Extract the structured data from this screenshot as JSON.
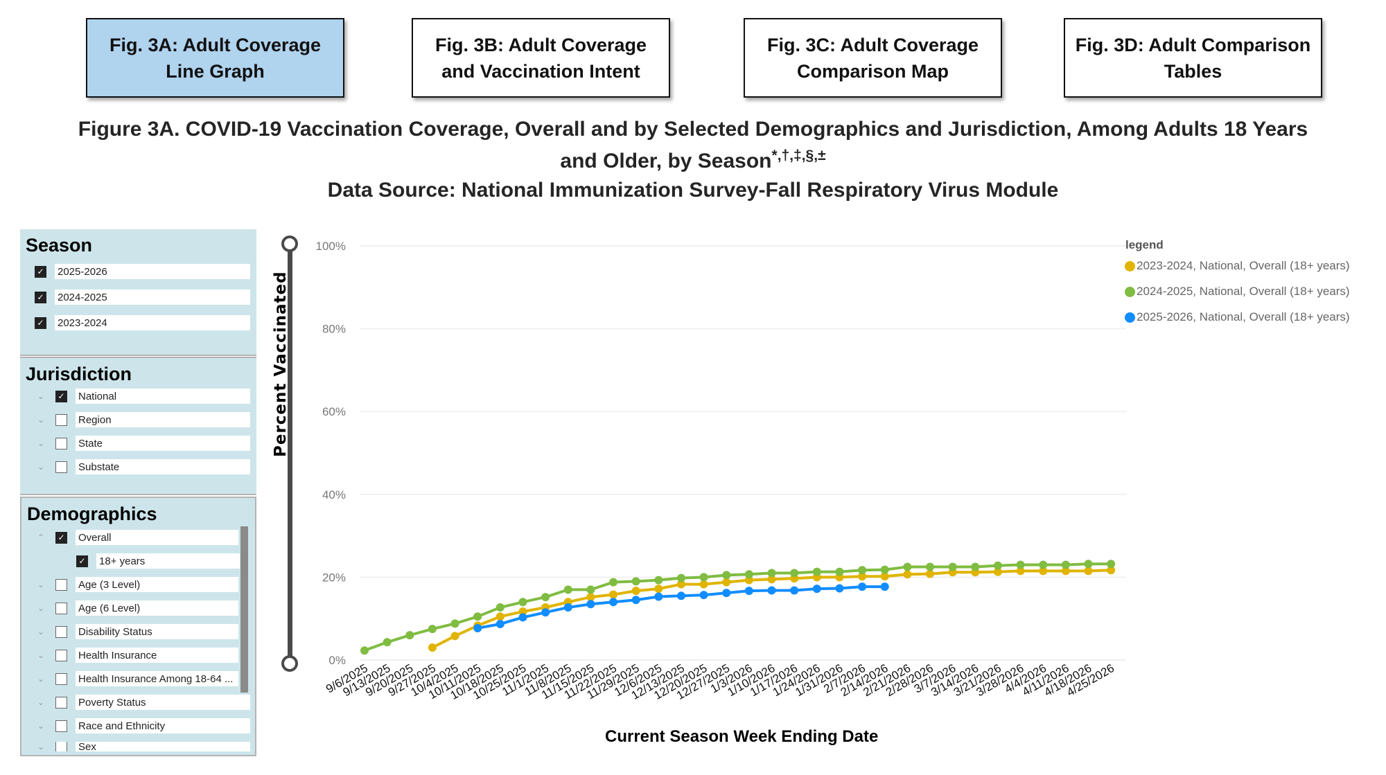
{
  "tabs": [
    {
      "label": "Fig. 3A: Adult Coverage\nLine Graph",
      "active": true
    },
    {
      "label": "Fig. 3B: Adult Coverage\nand Vaccination Intent",
      "active": false
    },
    {
      "label": "Fig. 3C: Adult Coverage\nComparison Map",
      "active": false
    },
    {
      "label": "Fig. 3D: Adult Comparison\nTables",
      "active": false
    }
  ],
  "title": {
    "line1": "Figure 3A. COVID-19 Vaccination Coverage, Overall and by Selected Demographics and Jurisdiction, Among Adults 18 Years",
    "line2": "and Older, by Season",
    "line2_sup": "*,†,‡,§,±",
    "source": "Data Source: National Immunization Survey-Fall Respiratory Virus Module"
  },
  "filters": {
    "season": {
      "heading": "Season",
      "items": [
        {
          "label": "2025-2026",
          "checked": true
        },
        {
          "label": "2024-2025",
          "checked": true
        },
        {
          "label": "2023-2024",
          "checked": true
        }
      ]
    },
    "jurisdiction": {
      "heading": "Jurisdiction",
      "items": [
        {
          "label": "National",
          "checked": true
        },
        {
          "label": "Region",
          "checked": false
        },
        {
          "label": "State",
          "checked": false
        },
        {
          "label": "Substate",
          "checked": false
        }
      ]
    },
    "demographics": {
      "heading": "Demographics",
      "items": [
        {
          "label": "Overall",
          "checked": true,
          "expanded": true
        },
        {
          "label": "18+ years",
          "checked": true,
          "child": true
        },
        {
          "label": "Age (3 Level)",
          "checked": false
        },
        {
          "label": "Age (6 Level)",
          "checked": false
        },
        {
          "label": "Disability Status",
          "checked": false
        },
        {
          "label": "Health Insurance",
          "checked": false
        },
        {
          "label": "Health Insurance Among 18-64 ...",
          "checked": false
        },
        {
          "label": "Poverty Status",
          "checked": false
        },
        {
          "label": "Race and Ethnicity",
          "checked": false
        },
        {
          "label": "Sex",
          "checked": false
        }
      ]
    }
  },
  "icons": {
    "check": "✓",
    "chevron_down": "⌄",
    "chevron_up": "⌃"
  },
  "chart_data": {
    "type": "line",
    "title": "Figure 3A. COVID-19 Vaccination Coverage, Overall and by Selected Demographics and Jurisdiction, Among Adults 18 Years and Older, by Season",
    "xlabel": "Current Season Week Ending Date",
    "ylabel": "Percent Vaccinated",
    "ylim": [
      0,
      100
    ],
    "yticks": [
      "0%",
      "20%",
      "40%",
      "60%",
      "80%",
      "100%"
    ],
    "grid": true,
    "legend_title": "legend",
    "legend_position": "top-right",
    "categories": [
      "9/6/2025",
      "9/13/2025",
      "9/20/2025",
      "9/27/2025",
      "10/4/2025",
      "10/11/2025",
      "10/18/2025",
      "10/25/2025",
      "11/1/2025",
      "11/8/2025",
      "11/15/2025",
      "11/22/2025",
      "11/29/2025",
      "12/6/2025",
      "12/13/2025",
      "12/20/2025",
      "12/27/2025",
      "1/3/2026",
      "1/10/2026",
      "1/17/2026",
      "1/24/2026",
      "1/31/2026",
      "2/7/2026",
      "2/14/2026",
      "2/21/2026",
      "2/28/2026",
      "3/7/2026",
      "3/14/2026",
      "3/21/2026",
      "3/28/2026",
      "4/4/2026",
      "4/11/2026",
      "4/18/2026",
      "4/25/2026"
    ],
    "series": [
      {
        "name": "2023-2024, National, Overall (18+ years)",
        "color": "#e0b400",
        "values": [
          null,
          null,
          null,
          3.0,
          5.8,
          8.3,
          10.5,
          11.7,
          12.7,
          14.0,
          15.2,
          15.8,
          16.7,
          17.2,
          18.3,
          18.3,
          18.8,
          19.3,
          19.5,
          19.7,
          20.0,
          20.0,
          20.2,
          20.2,
          20.7,
          20.8,
          21.2,
          21.2,
          21.3,
          21.5,
          21.5,
          21.5,
          21.5,
          21.7
        ]
      },
      {
        "name": "2024-2025, National, Overall (18+ years)",
        "color": "#7fbc41",
        "values": [
          2.3,
          4.3,
          6.0,
          7.5,
          8.8,
          10.5,
          12.7,
          14.0,
          15.2,
          17.0,
          17.0,
          18.8,
          19.0,
          19.3,
          19.8,
          20.0,
          20.5,
          20.7,
          21.0,
          21.0,
          21.3,
          21.3,
          21.7,
          21.8,
          22.5,
          22.5,
          22.5,
          22.5,
          22.8,
          23.0,
          23.0,
          23.0,
          23.2,
          23.2
        ]
      },
      {
        "name": "2025-2026, National, Overall (18+ years)",
        "color": "#118dff",
        "values": [
          null,
          null,
          null,
          null,
          null,
          7.7,
          8.7,
          10.3,
          11.5,
          12.7,
          13.5,
          14.0,
          14.5,
          15.3,
          15.5,
          15.7,
          16.2,
          16.7,
          16.8,
          16.8,
          17.2,
          17.3,
          17.7,
          17.7,
          null,
          null,
          null,
          null,
          null,
          null,
          null,
          null,
          null,
          null
        ]
      }
    ]
  }
}
